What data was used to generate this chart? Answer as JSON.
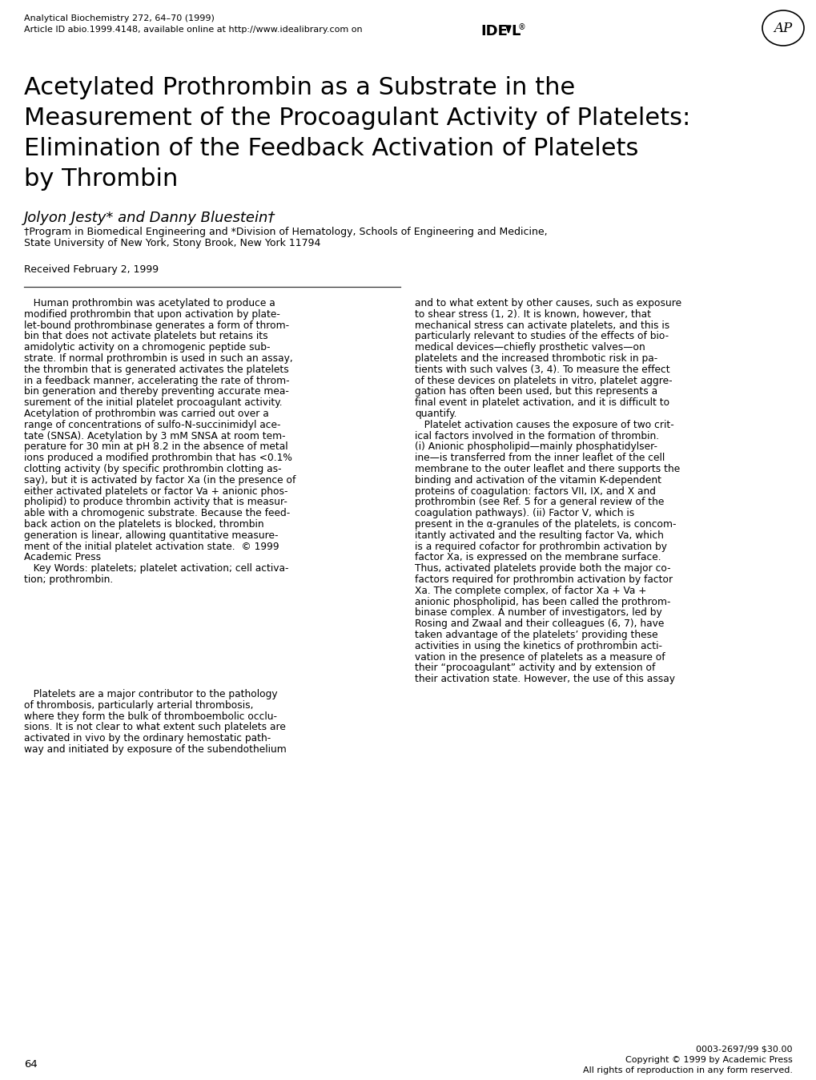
{
  "bg_color": "#ffffff",
  "header_line1": "Analytical Biochemistry 272, 64–70 (1999)",
  "header_line2": "Article ID abio.1999.4148, available online at http://www.idealibrary.com on",
  "title_lines": [
    "Acetylated Prothrombin as a Substrate in the",
    "Measurement of the Procoagulant Activity of Platelets:",
    "Elimination of the Feedback Activation of Platelets",
    "by Thrombin"
  ],
  "authors": "Jolyon Jesty* and Danny Bluestein†",
  "affiliation1": "†Program in Biomedical Engineering and *Division of Hematology, Schools of Engineering and Medicine,",
  "affiliation2": "State University of New York, Stony Brook, New York 11794",
  "received": "Received February 2, 1999",
  "left_col_lines": [
    "   Human prothrombin was acetylated to produce a",
    "modified prothrombin that upon activation by plate-",
    "let-bound prothrombinase generates a form of throm-",
    "bin that does not activate platelets but retains its",
    "amidolytic activity on a chromogenic peptide sub-",
    "strate. If normal prothrombin is used in such an assay,",
    "the thrombin that is generated activates the platelets",
    "in a feedback manner, accelerating the rate of throm-",
    "bin generation and thereby preventing accurate mea-",
    "surement of the initial platelet procoagulant activity.",
    "Acetylation of prothrombin was carried out over a",
    "range of concentrations of sulfo-N-succinimidyl ace-",
    "tate (SNSA). Acetylation by 3 mM SNSA at room tem-",
    "perature for 30 min at pH 8.2 in the absence of metal",
    "ions produced a modified prothrombin that has <0.1%",
    "clotting activity (by specific prothrombin clotting as-",
    "say), but it is activated by factor Xa (in the presence of",
    "either activated platelets or factor Va + anionic phos-",
    "pholipid) to produce thrombin activity that is measur-",
    "able with a chromogenic substrate. Because the feed-",
    "back action on the platelets is blocked, thrombin",
    "generation is linear, allowing quantitative measure-",
    "ment of the initial platelet activation state.  © 1999",
    "Academic Press",
    "   Key Words: platelets; platelet activation; cell activa-",
    "tion; prothrombin."
  ],
  "right_col_lines": [
    "and to what extent by other causes, such as exposure",
    "to shear stress (1, 2). It is known, however, that",
    "mechanical stress can activate platelets, and this is",
    "particularly relevant to studies of the effects of bio-",
    "medical devices—chiefly prosthetic valves—on",
    "platelets and the increased thrombotic risk in pa-",
    "tients with such valves (3, 4). To measure the effect",
    "of these devices on platelets in vitro, platelet aggre-",
    "gation has often been used, but this represents a",
    "final event in platelet activation, and it is difficult to",
    "quantify.",
    "   Platelet activation causes the exposure of two crit-",
    "ical factors involved in the formation of thrombin.",
    "(i) Anionic phospholipid—mainly phosphatidylser-",
    "ine—is transferred from the inner leaflet of the cell",
    "membrane to the outer leaflet and there supports the",
    "binding and activation of the vitamin K-dependent",
    "proteins of coagulation: factors VII, IX, and X and",
    "prothrombin (see Ref. 5 for a general review of the",
    "coagulation pathways). (ii) Factor V, which is",
    "present in the α-granules of the platelets, is concom-",
    "itantly activated and the resulting factor Va, which",
    "is a required cofactor for prothrombin activation by",
    "factor Xa, is expressed on the membrane surface.",
    "Thus, activated platelets provide both the major co-",
    "factors required for prothrombin activation by factor",
    "Xa. The complete complex, of factor Xa + Va +",
    "anionic phospholipid, has been called the prothrom-",
    "binase complex. A number of investigators, led by",
    "Rosing and Zwaal and their colleagues (6, 7), have",
    "taken advantage of the platelets’ providing these",
    "activities in using the kinetics of prothrombin acti-",
    "vation in the presence of platelets as a measure of",
    "their “procoagulant” activity and by extension of",
    "their activation state. However, the use of this assay"
  ],
  "bottom_left_lines": [
    "   Platelets are a major contributor to the pathology",
    "of thrombosis, particularly arterial thrombosis,",
    "where they form the bulk of thromboembolic occlu-",
    "sions. It is not clear to what extent such platelets are",
    "activated in vivo by the ordinary hemostatic path-",
    "way and initiated by exposure of the subendothelium"
  ],
  "page_number": "64",
  "footer_line1": "0003-2697/99 $30.00",
  "footer_line2": "Copyright © 1999 by Academic Press",
  "footer_line3": "All rights of reproduction in any form reserved."
}
